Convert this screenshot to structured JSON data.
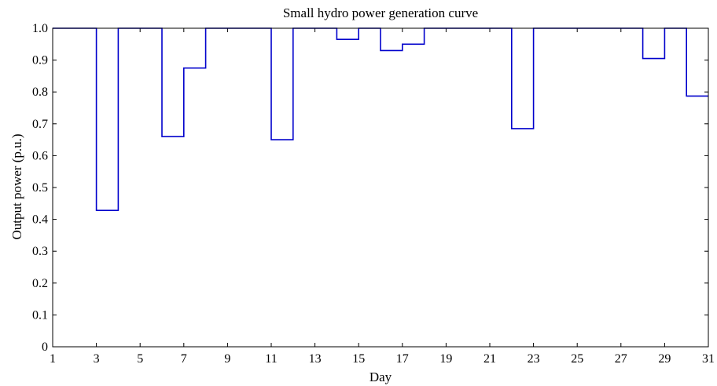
{
  "chart_data": {
    "type": "line",
    "title": "Small hydro power generation curve",
    "xlabel": "Day",
    "ylabel": "Output power (p.u.)",
    "xlim": [
      1,
      31
    ],
    "ylim": [
      0,
      1.0
    ],
    "xticks": [
      1,
      3,
      5,
      7,
      9,
      11,
      13,
      15,
      17,
      19,
      21,
      23,
      25,
      27,
      29,
      31
    ],
    "yticks": [
      0,
      0.1,
      0.2,
      0.3,
      0.4,
      0.5,
      0.6,
      0.7,
      0.8,
      0.9,
      1.0
    ],
    "ytick_labels": [
      "0",
      "0.1",
      "0.2",
      "0.3",
      "0.4",
      "0.5",
      "0.6",
      "0.7",
      "0.8",
      "0.9",
      "1.0"
    ],
    "step": "post",
    "grid": false,
    "line_color": "#0000cc",
    "series": [
      {
        "x": [
          1,
          2,
          3,
          4,
          5,
          6,
          7,
          8,
          9,
          10,
          11,
          12,
          13,
          14,
          15,
          16,
          17,
          18,
          19,
          20,
          21,
          22,
          23,
          24,
          25,
          26,
          27,
          28,
          29,
          30,
          31
        ],
        "values": [
          1.0,
          1.0,
          0.428,
          1.0,
          1.0,
          0.66,
          0.875,
          1.0,
          1.0,
          1.0,
          0.65,
          1.0,
          1.0,
          0.965,
          1.0,
          0.93,
          0.95,
          1.0,
          1.0,
          1.0,
          1.0,
          0.685,
          1.0,
          1.0,
          1.0,
          1.0,
          1.0,
          0.905,
          1.0,
          0.787,
          0.787
        ]
      }
    ]
  }
}
